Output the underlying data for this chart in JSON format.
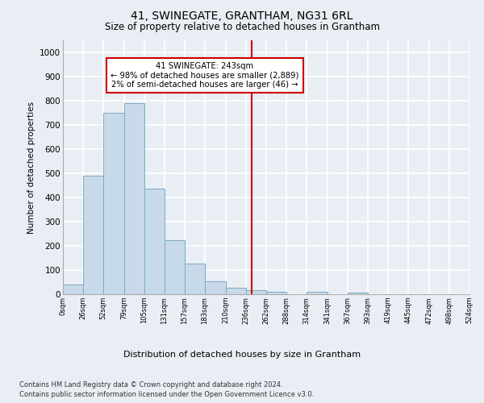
{
  "title": "41, SWINEGATE, GRANTHAM, NG31 6RL",
  "subtitle": "Size of property relative to detached houses in Grantham",
  "xlabel": "Distribution of detached houses by size in Grantham",
  "ylabel": "Number of detached properties",
  "bar_color": "#c8daea",
  "bar_edge_color": "#7aaabf",
  "vline_color": "#cc0000",
  "vline_x": 243,
  "annotation_title": "41 SWINEGATE: 243sqm",
  "annotation_line1": "← 98% of detached houses are smaller (2,889)",
  "annotation_line2": "2% of semi-detached houses are larger (46) →",
  "bin_edges": [
    0,
    26,
    52,
    79,
    105,
    131,
    157,
    183,
    210,
    236,
    262,
    288,
    314,
    341,
    367,
    393,
    419,
    445,
    472,
    498,
    524
  ],
  "bin_counts": [
    40,
    490,
    750,
    790,
    438,
    224,
    128,
    52,
    27,
    16,
    11,
    0,
    9,
    0,
    8,
    0,
    0,
    0,
    0,
    0
  ],
  "ylim": [
    0,
    1050
  ],
  "yticks": [
    0,
    100,
    200,
    300,
    400,
    500,
    600,
    700,
    800,
    900,
    1000
  ],
  "background_color": "#e8eef4",
  "plot_bg_color": "#e8eef4",
  "grid_color": "#ffffff",
  "footer1": "Contains HM Land Registry data © Crown copyright and database right 2024.",
  "footer2": "Contains public sector information licensed under the Open Government Licence v3.0."
}
